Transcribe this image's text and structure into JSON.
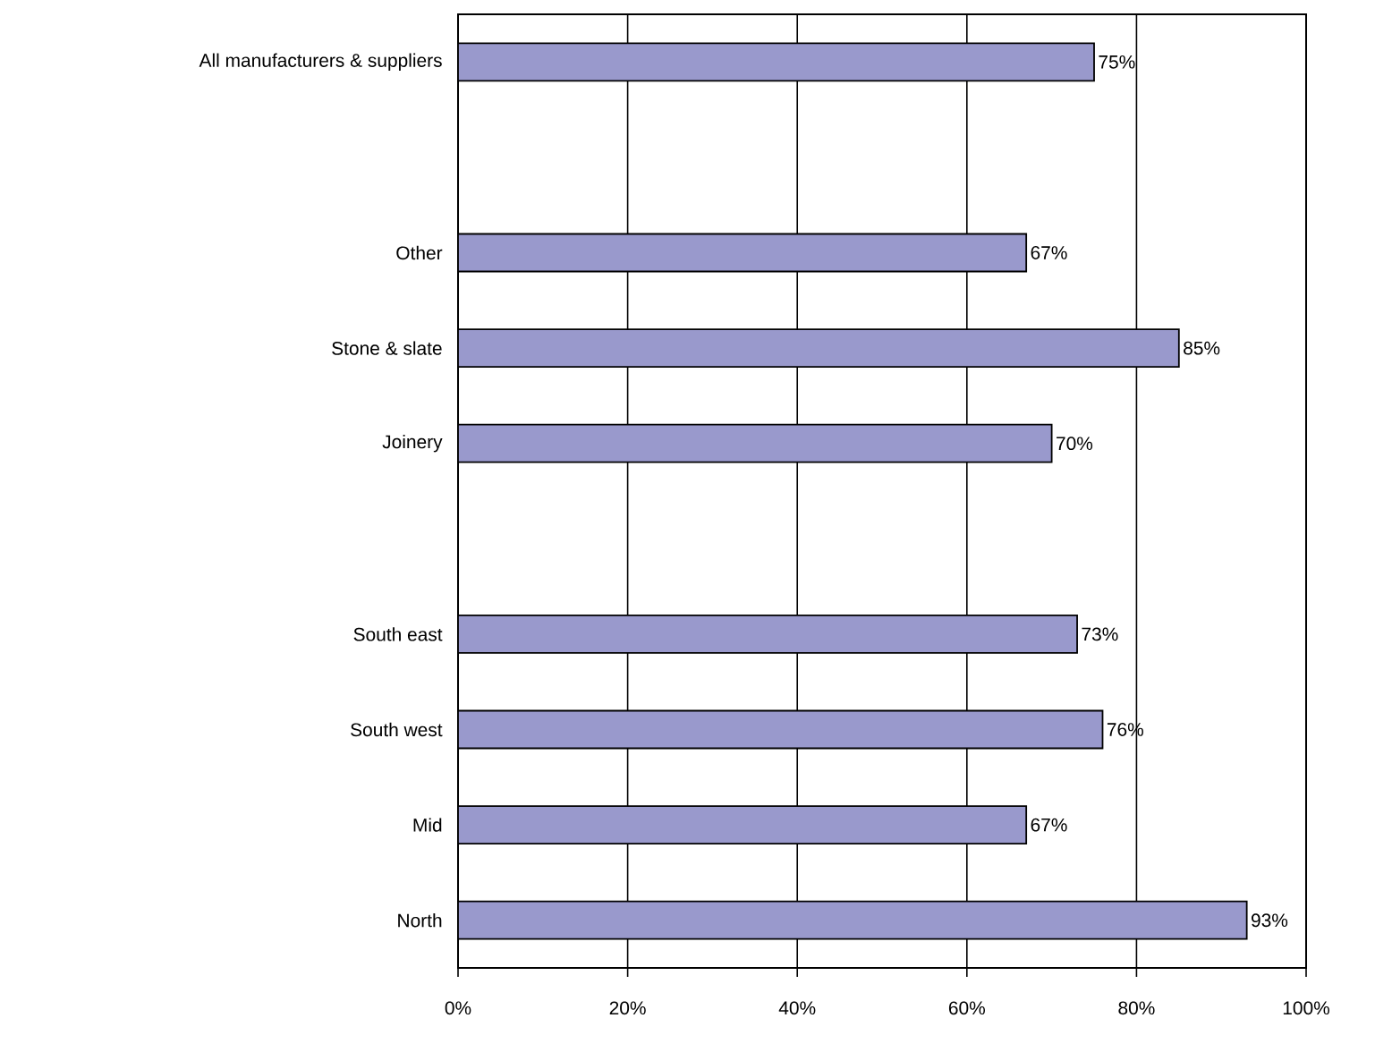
{
  "chart_data": {
    "type": "bar",
    "orientation": "horizontal",
    "categories": [
      "All manufacturers & suppliers",
      null,
      "Other",
      "Stone & slate",
      "Joinery",
      null,
      "South east",
      "South west",
      "Mid",
      "North"
    ],
    "values": [
      75,
      null,
      67,
      85,
      70,
      null,
      73,
      76,
      67,
      93
    ],
    "value_labels": [
      "75%",
      null,
      "67%",
      "85%",
      "70%",
      null,
      "73%",
      "76%",
      "67%",
      "93%"
    ],
    "color": "#9999cc",
    "xlim": [
      0,
      100
    ],
    "xticks": [
      {
        "value": 0,
        "label": "0%"
      },
      {
        "value": 20,
        "label": "20%"
      },
      {
        "value": 40,
        "label": "40%"
      },
      {
        "value": 60,
        "label": "60%"
      },
      {
        "value": 80,
        "label": "80%"
      },
      {
        "value": 100,
        "label": "100%"
      }
    ],
    "grid": "x"
  }
}
